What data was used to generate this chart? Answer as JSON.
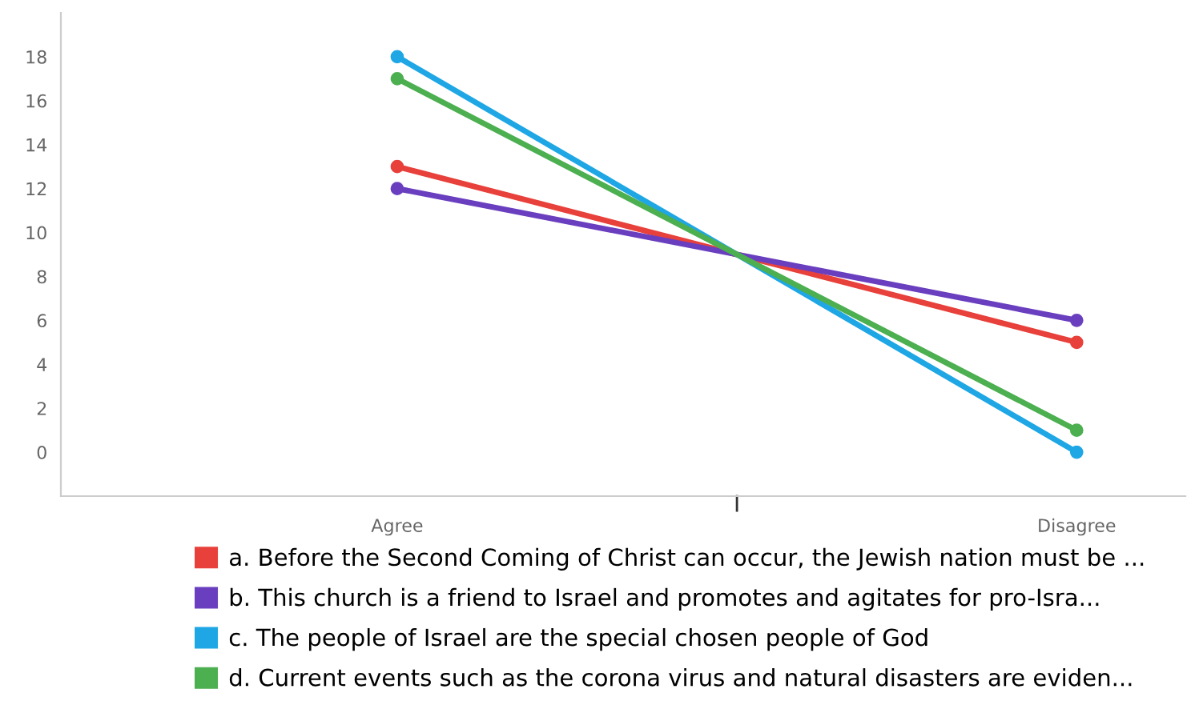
{
  "chart_data": {
    "type": "line",
    "categories": [
      "Agree",
      "Disagree"
    ],
    "ylim": [
      -2,
      20
    ],
    "yticks": [
      0,
      2,
      4,
      6,
      8,
      10,
      12,
      14,
      16,
      18
    ],
    "marker": "circle",
    "grid": false,
    "legend": "bottom",
    "series": [
      {
        "name": "a. Before the Second Coming of Christ can occur, the Jewish nation must be ...",
        "color": "#e8403a",
        "values": [
          13,
          5
        ]
      },
      {
        "name": "b. This church is a friend to Israel and promotes and agitates for pro-Isra...",
        "color": "#6a3fbf",
        "values": [
          12,
          6
        ]
      },
      {
        "name": "c. The people of Israel are the special chosen people of God",
        "color": "#1ea7e4",
        "values": [
          18,
          0
        ]
      },
      {
        "name": "d. Current events such as the corona virus and natural disasters are eviden...",
        "color": "#4caf50",
        "values": [
          17,
          1
        ]
      }
    ]
  }
}
